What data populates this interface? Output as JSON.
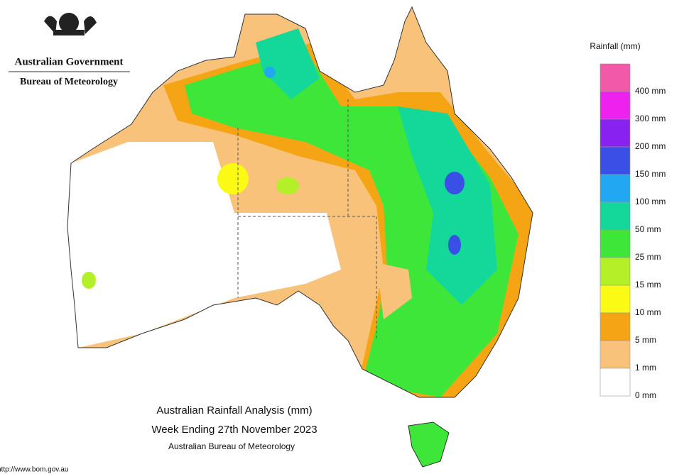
{
  "header": {
    "government": "Australian Government",
    "bureau": "Bureau of Meteorology"
  },
  "legend": {
    "title": "Rainfall (mm)",
    "levels": [
      {
        "label": "400 mm",
        "color": "#f25aa8"
      },
      {
        "label": "300 mm",
        "color": "#ee22ee"
      },
      {
        "label": "200 mm",
        "color": "#8822ee"
      },
      {
        "label": "150 mm",
        "color": "#3a4fe6"
      },
      {
        "label": "100 mm",
        "color": "#22a8f2"
      },
      {
        "label": "50 mm",
        "color": "#14d89a"
      },
      {
        "label": "25 mm",
        "color": "#3ee63a"
      },
      {
        "label": "15 mm",
        "color": "#b4f028"
      },
      {
        "label": "10 mm",
        "color": "#fafa14"
      },
      {
        "label": "5 mm",
        "color": "#f5a514"
      },
      {
        "label": "1 mm",
        "color": "#f8c27a"
      },
      {
        "label": "0 mm",
        "color": "#ffffff"
      }
    ]
  },
  "caption": {
    "line1": "Australian Rainfall Analysis (mm)",
    "line2": "Week Ending 27th November 2023",
    "line3": "Australian Bureau of Meteorology"
  },
  "url": "http://www.bom.gov.au"
}
